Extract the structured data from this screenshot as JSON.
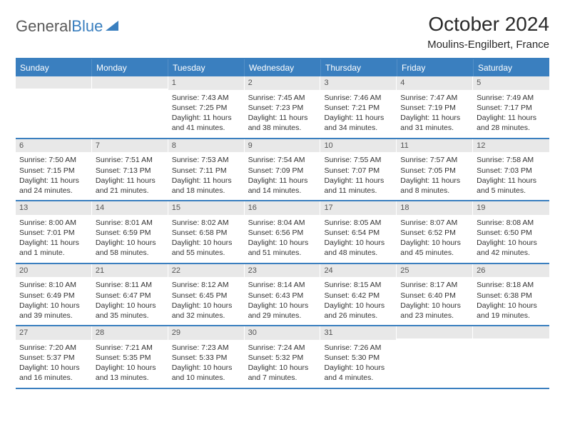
{
  "logo": {
    "word1": "General",
    "word2": "Blue"
  },
  "header": {
    "month_title": "October 2024",
    "location": "Moulins-Engilbert, France"
  },
  "colors": {
    "header_bg": "#3a7fbf",
    "header_text": "#ffffff",
    "daynum_bg": "#e8e8e8",
    "border": "#3a7fbf",
    "body_text": "#333333"
  },
  "day_headers": [
    "Sunday",
    "Monday",
    "Tuesday",
    "Wednesday",
    "Thursday",
    "Friday",
    "Saturday"
  ],
  "weeks": [
    [
      {
        "num": "",
        "lines": []
      },
      {
        "num": "",
        "lines": []
      },
      {
        "num": "1",
        "lines": [
          "Sunrise: 7:43 AM",
          "Sunset: 7:25 PM",
          "Daylight: 11 hours and 41 minutes."
        ]
      },
      {
        "num": "2",
        "lines": [
          "Sunrise: 7:45 AM",
          "Sunset: 7:23 PM",
          "Daylight: 11 hours and 38 minutes."
        ]
      },
      {
        "num": "3",
        "lines": [
          "Sunrise: 7:46 AM",
          "Sunset: 7:21 PM",
          "Daylight: 11 hours and 34 minutes."
        ]
      },
      {
        "num": "4",
        "lines": [
          "Sunrise: 7:47 AM",
          "Sunset: 7:19 PM",
          "Daylight: 11 hours and 31 minutes."
        ]
      },
      {
        "num": "5",
        "lines": [
          "Sunrise: 7:49 AM",
          "Sunset: 7:17 PM",
          "Daylight: 11 hours and 28 minutes."
        ]
      }
    ],
    [
      {
        "num": "6",
        "lines": [
          "Sunrise: 7:50 AM",
          "Sunset: 7:15 PM",
          "Daylight: 11 hours and 24 minutes."
        ]
      },
      {
        "num": "7",
        "lines": [
          "Sunrise: 7:51 AM",
          "Sunset: 7:13 PM",
          "Daylight: 11 hours and 21 minutes."
        ]
      },
      {
        "num": "8",
        "lines": [
          "Sunrise: 7:53 AM",
          "Sunset: 7:11 PM",
          "Daylight: 11 hours and 18 minutes."
        ]
      },
      {
        "num": "9",
        "lines": [
          "Sunrise: 7:54 AM",
          "Sunset: 7:09 PM",
          "Daylight: 11 hours and 14 minutes."
        ]
      },
      {
        "num": "10",
        "lines": [
          "Sunrise: 7:55 AM",
          "Sunset: 7:07 PM",
          "Daylight: 11 hours and 11 minutes."
        ]
      },
      {
        "num": "11",
        "lines": [
          "Sunrise: 7:57 AM",
          "Sunset: 7:05 PM",
          "Daylight: 11 hours and 8 minutes."
        ]
      },
      {
        "num": "12",
        "lines": [
          "Sunrise: 7:58 AM",
          "Sunset: 7:03 PM",
          "Daylight: 11 hours and 5 minutes."
        ]
      }
    ],
    [
      {
        "num": "13",
        "lines": [
          "Sunrise: 8:00 AM",
          "Sunset: 7:01 PM",
          "Daylight: 11 hours and 1 minute."
        ]
      },
      {
        "num": "14",
        "lines": [
          "Sunrise: 8:01 AM",
          "Sunset: 6:59 PM",
          "Daylight: 10 hours and 58 minutes."
        ]
      },
      {
        "num": "15",
        "lines": [
          "Sunrise: 8:02 AM",
          "Sunset: 6:58 PM",
          "Daylight: 10 hours and 55 minutes."
        ]
      },
      {
        "num": "16",
        "lines": [
          "Sunrise: 8:04 AM",
          "Sunset: 6:56 PM",
          "Daylight: 10 hours and 51 minutes."
        ]
      },
      {
        "num": "17",
        "lines": [
          "Sunrise: 8:05 AM",
          "Sunset: 6:54 PM",
          "Daylight: 10 hours and 48 minutes."
        ]
      },
      {
        "num": "18",
        "lines": [
          "Sunrise: 8:07 AM",
          "Sunset: 6:52 PM",
          "Daylight: 10 hours and 45 minutes."
        ]
      },
      {
        "num": "19",
        "lines": [
          "Sunrise: 8:08 AM",
          "Sunset: 6:50 PM",
          "Daylight: 10 hours and 42 minutes."
        ]
      }
    ],
    [
      {
        "num": "20",
        "lines": [
          "Sunrise: 8:10 AM",
          "Sunset: 6:49 PM",
          "Daylight: 10 hours and 39 minutes."
        ]
      },
      {
        "num": "21",
        "lines": [
          "Sunrise: 8:11 AM",
          "Sunset: 6:47 PM",
          "Daylight: 10 hours and 35 minutes."
        ]
      },
      {
        "num": "22",
        "lines": [
          "Sunrise: 8:12 AM",
          "Sunset: 6:45 PM",
          "Daylight: 10 hours and 32 minutes."
        ]
      },
      {
        "num": "23",
        "lines": [
          "Sunrise: 8:14 AM",
          "Sunset: 6:43 PM",
          "Daylight: 10 hours and 29 minutes."
        ]
      },
      {
        "num": "24",
        "lines": [
          "Sunrise: 8:15 AM",
          "Sunset: 6:42 PM",
          "Daylight: 10 hours and 26 minutes."
        ]
      },
      {
        "num": "25",
        "lines": [
          "Sunrise: 8:17 AM",
          "Sunset: 6:40 PM",
          "Daylight: 10 hours and 23 minutes."
        ]
      },
      {
        "num": "26",
        "lines": [
          "Sunrise: 8:18 AM",
          "Sunset: 6:38 PM",
          "Daylight: 10 hours and 19 minutes."
        ]
      }
    ],
    [
      {
        "num": "27",
        "lines": [
          "Sunrise: 7:20 AM",
          "Sunset: 5:37 PM",
          "Daylight: 10 hours and 16 minutes."
        ]
      },
      {
        "num": "28",
        "lines": [
          "Sunrise: 7:21 AM",
          "Sunset: 5:35 PM",
          "Daylight: 10 hours and 13 minutes."
        ]
      },
      {
        "num": "29",
        "lines": [
          "Sunrise: 7:23 AM",
          "Sunset: 5:33 PM",
          "Daylight: 10 hours and 10 minutes."
        ]
      },
      {
        "num": "30",
        "lines": [
          "Sunrise: 7:24 AM",
          "Sunset: 5:32 PM",
          "Daylight: 10 hours and 7 minutes."
        ]
      },
      {
        "num": "31",
        "lines": [
          "Sunrise: 7:26 AM",
          "Sunset: 5:30 PM",
          "Daylight: 10 hours and 4 minutes."
        ]
      },
      {
        "num": "",
        "lines": []
      },
      {
        "num": "",
        "lines": []
      }
    ]
  ]
}
